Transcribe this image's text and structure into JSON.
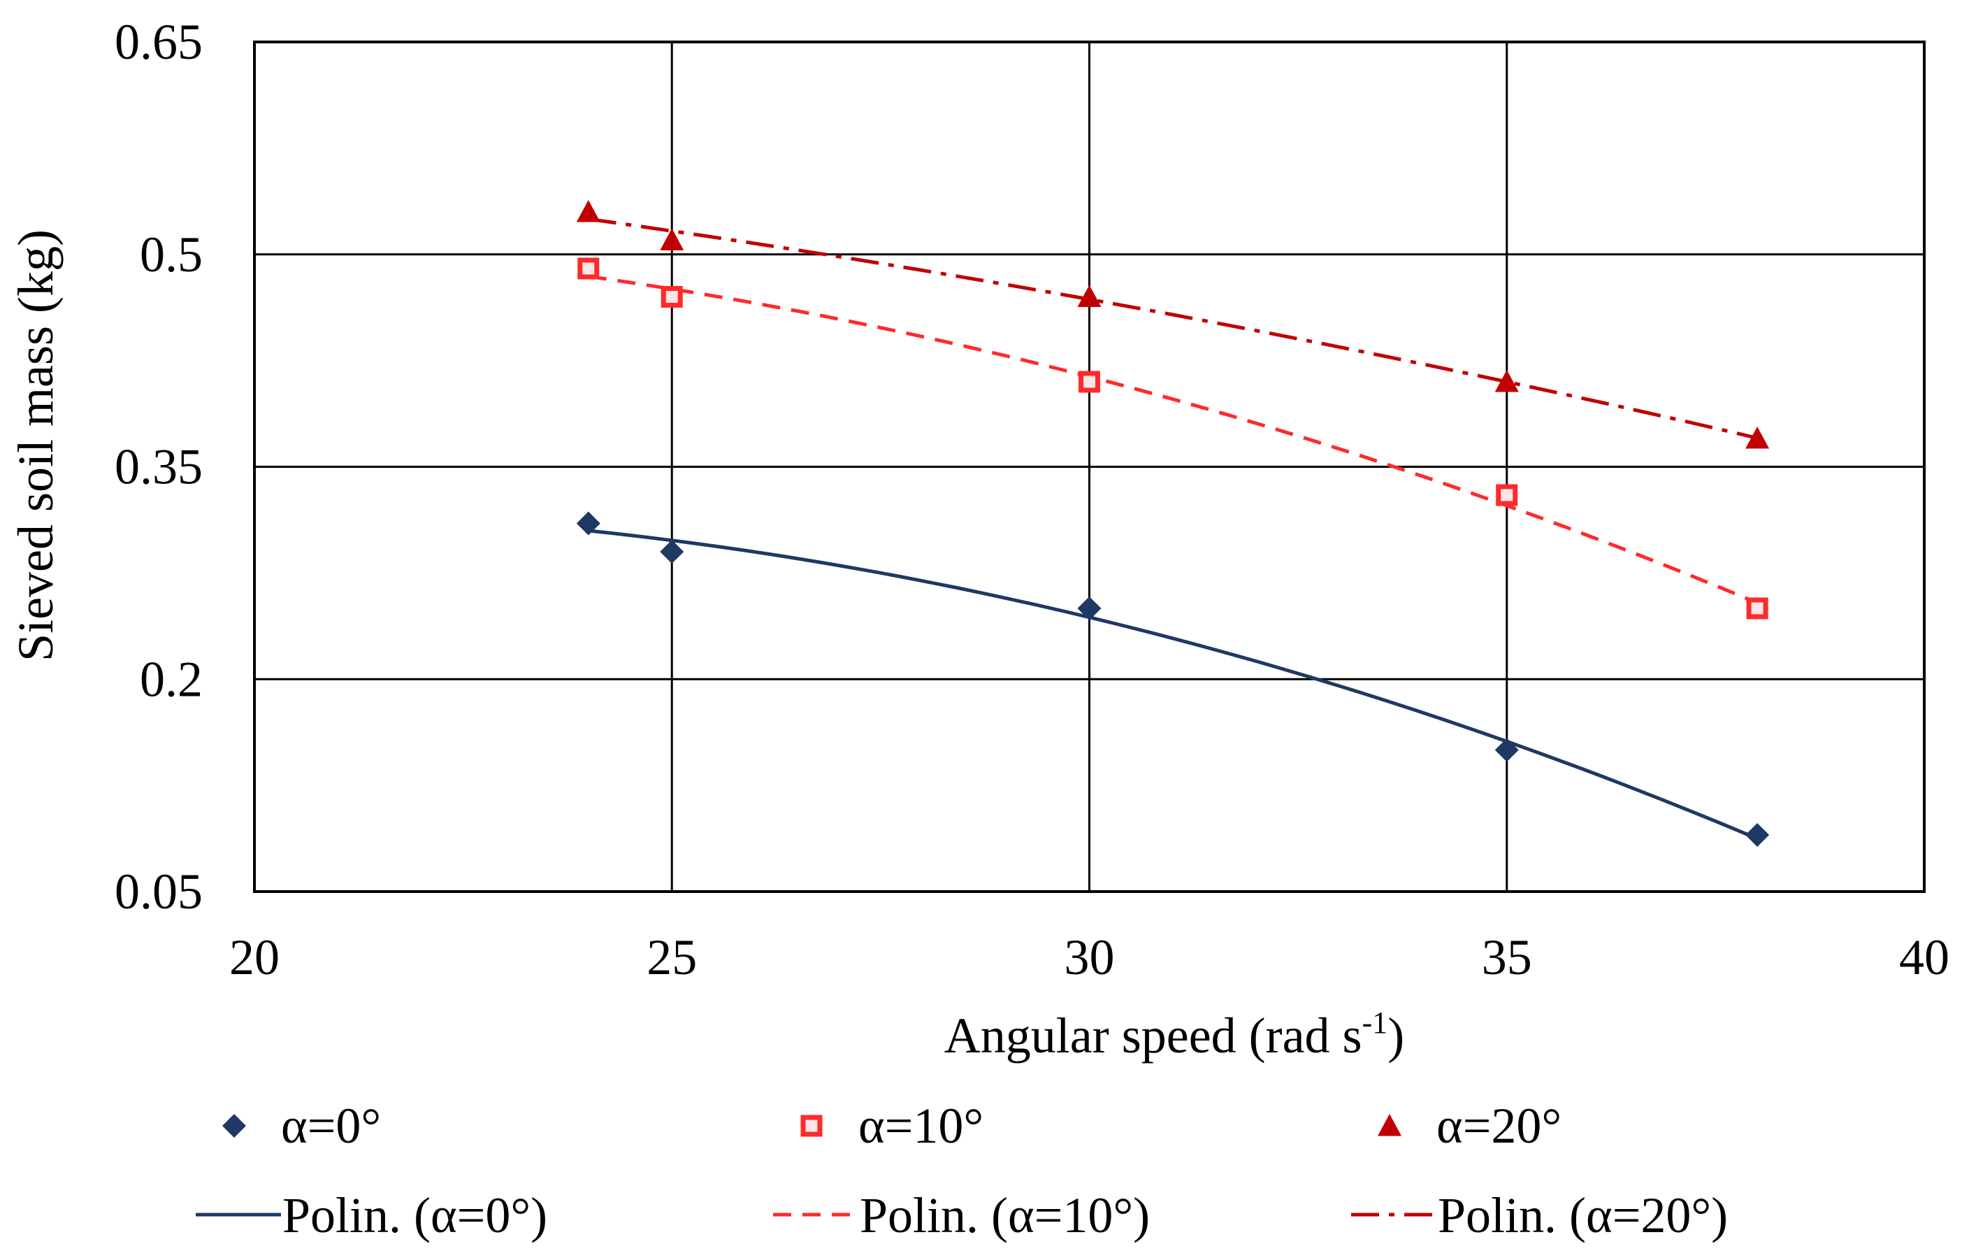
{
  "chart_data": {
    "type": "scatter",
    "title": "",
    "xlabel": "Angular speed (rad s",
    "xlabel_sup": "-1",
    "xlabel_end": ")",
    "ylabel": "Sieved soil mass (kg)",
    "xlim": [
      20,
      40
    ],
    "ylim": [
      0.05,
      0.65
    ],
    "xticks": [
      20,
      25,
      30,
      35,
      40
    ],
    "xtick_labels": [
      "20",
      "25",
      "30",
      "35",
      "40"
    ],
    "yticks": [
      0.05,
      0.2,
      0.35,
      0.5,
      0.65
    ],
    "ytick_labels": [
      "0.05",
      "0.2",
      "0.35",
      "0.5",
      "0.65"
    ],
    "grid": true,
    "legend_position": "bottom",
    "series": [
      {
        "name": "α=0°",
        "trend_name": "Polin. (α=0°)",
        "marker": "diamond",
        "line_style": "solid",
        "color": "#1f3864",
        "x": [
          24,
          25,
          30,
          35,
          38
        ],
        "y": [
          0.31,
          0.29,
          0.25,
          0.15,
          0.09
        ]
      },
      {
        "name": "α=10°",
        "trend_name": "Polin. (α=10°)",
        "marker": "square",
        "line_style": "dashed",
        "color": "#ff2a2a",
        "x": [
          24,
          25,
          30,
          35,
          38
        ],
        "y": [
          0.49,
          0.47,
          0.41,
          0.33,
          0.25
        ]
      },
      {
        "name": "α=20°",
        "trend_name": "Polin. (α=20°)",
        "marker": "triangle",
        "line_style": "dashdot",
        "color": "#c00000",
        "x": [
          24,
          25,
          30,
          35,
          38
        ],
        "y": [
          0.53,
          0.51,
          0.47,
          0.41,
          0.37
        ]
      }
    ]
  }
}
